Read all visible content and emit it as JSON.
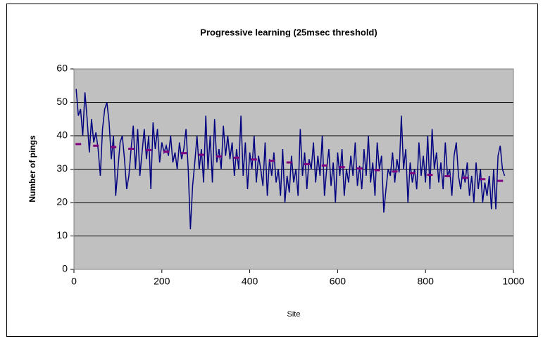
{
  "chart_data": {
    "type": "line",
    "title": "Progressive learning (25msec threshold)",
    "x_label": "Site",
    "y_label": "Number of pings",
    "xlim": [
      0,
      1000
    ],
    "xticks": [
      0,
      200,
      400,
      600,
      800,
      1000
    ],
    "ylim": [
      0,
      60
    ],
    "yticks": [
      0,
      10,
      20,
      30,
      40,
      50,
      60
    ],
    "grid": true,
    "series": [
      {
        "color": "#000080",
        "style": "solid",
        "x": [
          5,
          10,
          15,
          20,
          25,
          30,
          35,
          40,
          45,
          50,
          55,
          60,
          65,
          70,
          75,
          80,
          85,
          90,
          95,
          100,
          105,
          110,
          115,
          120,
          125,
          130,
          135,
          140,
          145,
          150,
          155,
          160,
          165,
          170,
          175,
          180,
          185,
          190,
          195,
          200,
          205,
          210,
          215,
          220,
          225,
          230,
          235,
          240,
          245,
          250,
          255,
          260,
          265,
          270,
          275,
          280,
          285,
          290,
          295,
          300,
          305,
          310,
          315,
          320,
          325,
          330,
          335,
          340,
          345,
          350,
          355,
          360,
          365,
          370,
          375,
          380,
          385,
          390,
          395,
          400,
          405,
          410,
          415,
          420,
          425,
          430,
          435,
          440,
          445,
          450,
          455,
          460,
          465,
          470,
          475,
          480,
          485,
          490,
          495,
          500,
          505,
          510,
          515,
          520,
          525,
          530,
          535,
          540,
          545,
          550,
          555,
          560,
          565,
          570,
          575,
          580,
          585,
          590,
          595,
          600,
          605,
          610,
          615,
          620,
          625,
          630,
          635,
          640,
          645,
          650,
          655,
          660,
          665,
          670,
          675,
          680,
          685,
          690,
          695,
          700,
          705,
          710,
          715,
          720,
          725,
          730,
          735,
          740,
          745,
          750,
          755,
          760,
          765,
          770,
          775,
          780,
          785,
          790,
          795,
          800,
          805,
          810,
          815,
          820,
          825,
          830,
          835,
          840,
          845,
          850,
          855,
          860,
          865,
          870,
          875,
          880,
          885,
          890,
          895,
          900,
          905,
          910,
          915,
          920,
          925,
          930,
          935,
          940,
          945,
          950,
          955,
          960,
          965,
          970,
          975,
          980
        ],
        "values": [
          54,
          46,
          48,
          40,
          53,
          45,
          35,
          45,
          38,
          41,
          36,
          28,
          42,
          48,
          50,
          44,
          33,
          40,
          22,
          30,
          38,
          40,
          33,
          24,
          28,
          36,
          43,
          30,
          42,
          28,
          35,
          42,
          33,
          40,
          24,
          44,
          36,
          42,
          32,
          38,
          35,
          37,
          34,
          40,
          32,
          35,
          30,
          38,
          33,
          36,
          42,
          30,
          12,
          25,
          32,
          40,
          30,
          36,
          26,
          46,
          30,
          40,
          26,
          45,
          32,
          36,
          30,
          43,
          34,
          40,
          33,
          38,
          28,
          36,
          30,
          46,
          28,
          38,
          24,
          35,
          30,
          40,
          26,
          34,
          30,
          25,
          38,
          22,
          33,
          28,
          35,
          26,
          30,
          22,
          36,
          20,
          28,
          23,
          34,
          26,
          30,
          22,
          42,
          28,
          35,
          24,
          33,
          30,
          38,
          26,
          34,
          28,
          40,
          22,
          30,
          36,
          25,
          32,
          20,
          35,
          28,
          36,
          22,
          30,
          26,
          34,
          28,
          38,
          25,
          31,
          24,
          36,
          28,
          40,
          26,
          32,
          22,
          38,
          30,
          34,
          17,
          24,
          30,
          28,
          35,
          26,
          33,
          29,
          46,
          30,
          36,
          20,
          32,
          26,
          30,
          24,
          38,
          28,
          34,
          26,
          40,
          24,
          42,
          30,
          35,
          26,
          32,
          24,
          38,
          28,
          30,
          22,
          34,
          38,
          28,
          24,
          30,
          26,
          32,
          22,
          28,
          20,
          32,
          24,
          30,
          20,
          26,
          22,
          28,
          18,
          30,
          18,
          34,
          37,
          30,
          28
        ]
      },
      {
        "color": "#800080",
        "style": "dashes",
        "x": [
          10,
          50,
          90,
          130,
          170,
          210,
          250,
          290,
          330,
          370,
          410,
          450,
          490,
          530,
          570,
          610,
          650,
          690,
          730,
          770,
          810,
          850,
          890,
          930,
          970
        ],
        "values": [
          37.5,
          37.0,
          36.6,
          36.1,
          35.7,
          35.2,
          34.8,
          34.3,
          33.8,
          33.4,
          32.9,
          32.5,
          32.0,
          31.5,
          31.1,
          30.6,
          30.2,
          29.7,
          29.3,
          28.8,
          28.3,
          27.9,
          27.4,
          27.0,
          26.5
        ]
      }
    ]
  }
}
